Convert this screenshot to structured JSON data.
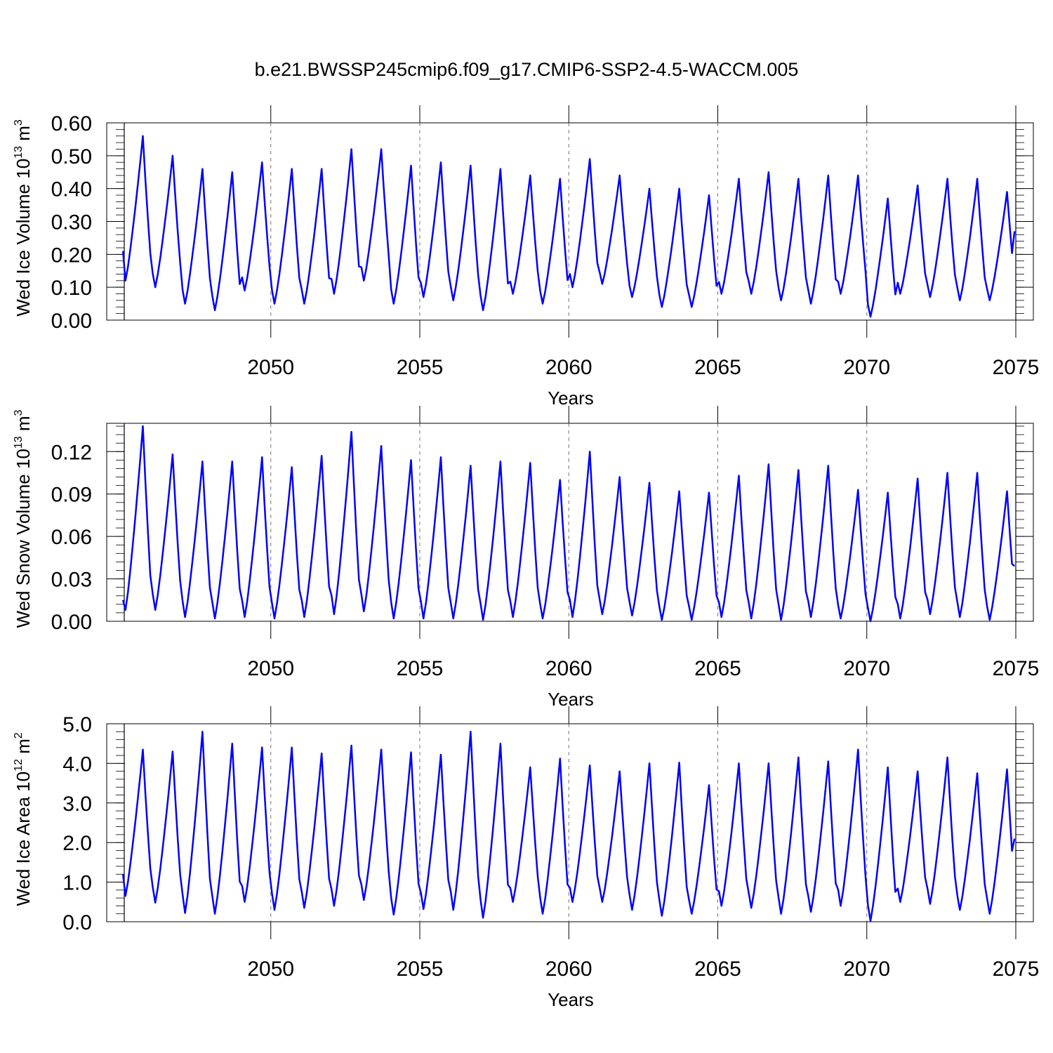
{
  "figure": {
    "title": "b.e21.BWSSP245cmip6.f09_g17.CMIP6-SSP2-4.5-WACCM.005"
  },
  "colors": {
    "series": "#0000ff",
    "axis": "#000000",
    "gridline": "#777777"
  },
  "chart_data": [
    {
      "type": "line",
      "ylabel_main": "Wed Ice Volume 10",
      "ylabel_exp": "13",
      "ylabel_unit": " m",
      "ylabel_unit_exp": "3",
      "xlabel": "Years",
      "xlim": [
        2045,
        2075
      ],
      "xticks": [
        "2050",
        "2055",
        "2060",
        "2065",
        "2070",
        "2075"
      ],
      "ylim": [
        0,
        0.6
      ],
      "yticks": [
        "0.00",
        "0.10",
        "0.20",
        "0.30",
        "0.40",
        "0.50",
        "0.60"
      ],
      "series": [
        {
          "name": "Wed Ice Volume",
          "t0": 2045.04,
          "dt": 0.0833333,
          "amplitude": "seasonal cycle: minimum near Feb-Mar, maximum near Sep-Oct",
          "annual_max": [
            0.56,
            0.5,
            0.46,
            0.45,
            0.48,
            0.46,
            0.46,
            0.52,
            0.52,
            0.47,
            0.48,
            0.47,
            0.46,
            0.44,
            0.43,
            0.49,
            0.44,
            0.4,
            0.4,
            0.38,
            0.43,
            0.45,
            0.43,
            0.44,
            0.44,
            0.37,
            0.41,
            0.43,
            0.43,
            0.39
          ],
          "annual_min": [
            0.12,
            0.1,
            0.05,
            0.03,
            0.09,
            0.05,
            0.05,
            0.08,
            0.12,
            0.05,
            0.07,
            0.06,
            0.03,
            0.08,
            0.05,
            0.1,
            0.11,
            0.07,
            0.04,
            0.04,
            0.08,
            0.08,
            0.06,
            0.05,
            0.08,
            0.01,
            0.08,
            0.07,
            0.06,
            0.06
          ],
          "start_value": 0.21,
          "end_value": 0.27
        }
      ]
    },
    {
      "type": "line",
      "ylabel_main": "Wed Snow Volume 10",
      "ylabel_exp": "13",
      "ylabel_unit": " m",
      "ylabel_unit_exp": "3",
      "xlabel": "Years",
      "xlim": [
        2045,
        2075
      ],
      "xticks": [
        "2050",
        "2055",
        "2060",
        "2065",
        "2070",
        "2075"
      ],
      "ylim": [
        0,
        0.14
      ],
      "yticks": [
        "0.00",
        "0.03",
        "0.06",
        "0.09",
        "0.12"
      ],
      "series": [
        {
          "name": "Wed Snow Volume",
          "t0": 2045.04,
          "dt": 0.0833333,
          "annual_max": [
            0.138,
            0.118,
            0.113,
            0.113,
            0.116,
            0.109,
            0.117,
            0.134,
            0.124,
            0.114,
            0.116,
            0.11,
            0.113,
            0.112,
            0.1,
            0.12,
            0.102,
            0.098,
            0.092,
            0.091,
            0.103,
            0.111,
            0.107,
            0.11,
            0.093,
            0.091,
            0.101,
            0.105,
            0.105,
            0.092
          ],
          "annual_min": [
            0.008,
            0.008,
            0.003,
            0.002,
            0.003,
            0.002,
            0.003,
            0.005,
            0.007,
            0.002,
            0.002,
            0.002,
            0.001,
            0.003,
            0.002,
            0.003,
            0.005,
            0.004,
            0.001,
            0.001,
            0.003,
            0.002,
            0.001,
            0.003,
            0.002,
            0.0,
            0.002,
            0.005,
            0.003,
            0.001
          ],
          "start_value": 0.015,
          "end_value": 0.039
        }
      ]
    },
    {
      "type": "line",
      "ylabel_main": "Wed Ice Area 10",
      "ylabel_exp": "12",
      "ylabel_unit": " m",
      "ylabel_unit_exp": "2",
      "xlabel": "Years",
      "xlim": [
        2045,
        2075
      ],
      "xticks": [
        "2050",
        "2055",
        "2060",
        "2065",
        "2070",
        "2075"
      ],
      "ylim": [
        0,
        5.0
      ],
      "yticks": [
        "0.0",
        "1.0",
        "2.0",
        "3.0",
        "4.0",
        "5.0"
      ],
      "series": [
        {
          "name": "Wed Ice Area",
          "t0": 2045.04,
          "dt": 0.0833333,
          "annual_max": [
            4.35,
            4.3,
            4.8,
            4.5,
            4.4,
            4.4,
            4.25,
            4.45,
            4.35,
            4.28,
            4.22,
            4.8,
            4.5,
            3.9,
            4.12,
            3.95,
            3.8,
            4.0,
            4.02,
            3.45,
            4.0,
            4.0,
            4.15,
            4.05,
            4.35,
            3.9,
            3.8,
            4.15,
            3.75,
            3.85
          ],
          "annual_min": [
            0.65,
            0.48,
            0.22,
            0.2,
            0.5,
            0.3,
            0.35,
            0.4,
            0.55,
            0.18,
            0.32,
            0.3,
            0.1,
            0.5,
            0.2,
            0.5,
            0.5,
            0.3,
            0.15,
            0.2,
            0.4,
            0.35,
            0.2,
            0.25,
            0.4,
            0.02,
            0.5,
            0.45,
            0.3,
            0.2
          ],
          "start_value": 1.2,
          "end_value": 2.1
        }
      ]
    }
  ]
}
